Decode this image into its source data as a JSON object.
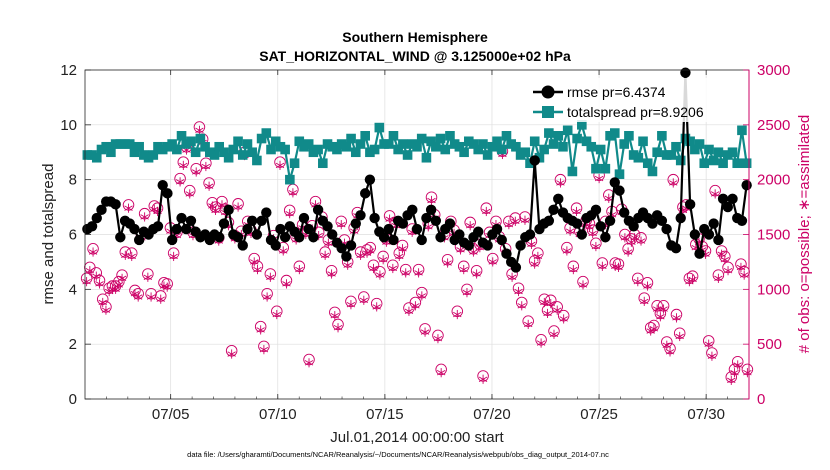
{
  "chart_data": {
    "type": "line",
    "title_line1": "Southern Hemisphere",
    "title_line2": "SAT_HORIZONTAL_WIND @ 3.125000e+02 hPa",
    "xlabel": "Jul.01,2014 00:00:00 start",
    "ylabel_left": "rmse and totalspread",
    "ylabel_right": "# of obs: o=possible; ∗=assimilated",
    "xlim": [
      1,
      32
    ],
    "ylim_left": [
      0,
      12
    ],
    "ylim_right": [
      0,
      3000
    ],
    "x_ticks": [
      5,
      10,
      15,
      20,
      25,
      30
    ],
    "x_tick_labels": [
      "07/05",
      "07/10",
      "07/15",
      "07/20",
      "07/25",
      "07/30"
    ],
    "y_ticks_left": [
      "0",
      "2",
      "4",
      "6",
      "8",
      "10",
      "12"
    ],
    "y_ticks_right": [
      "0",
      "500",
      "1000",
      "1500",
      "2000",
      "2500",
      "3000"
    ],
    "footer": "data file: /Users/gharamti/Documents/NCAR/Reanalysis/~/Documents/NCAR/Reanalysis/webpub/obs_diag_output_2014-07.nc",
    "legend": [
      {
        "name": "rmse pr=6.4374"
      },
      {
        "name": "totalspread pr=8.9206"
      }
    ],
    "colors": {
      "rmse": "#000000",
      "spread": "#108a8a",
      "obs": "#cc0066",
      "axis": "#262626"
    },
    "series": [
      {
        "name": "rmse",
        "axis": "left",
        "values": [
          6.2,
          6.3,
          6.6,
          6.9,
          7.2,
          7.2,
          7.1,
          5.9,
          6.5,
          6.4,
          6.2,
          5.8,
          6.1,
          6.0,
          6.2,
          6.3,
          7.8,
          7.5,
          5.8,
          6.2,
          6.6,
          6.2,
          6.5,
          6.1,
          5.9,
          6.0,
          5.8,
          6.0,
          5.9,
          6.4,
          6.9,
          6.0,
          5.9,
          5.6,
          6.2,
          6.5,
          6.0,
          6.5,
          6.8,
          5.8,
          5.6,
          6.2,
          5.9,
          6.3,
          6.1,
          5.9,
          6.6,
          6.2,
          5.9,
          6.9,
          6.5,
          6.3,
          6.0,
          5.7,
          5.5,
          5.2,
          5.6,
          6.4,
          6.7,
          7.5,
          8.0,
          6.6,
          6.1,
          5.9,
          6.2,
          5.8,
          6.5,
          6.4,
          6.7,
          6.9,
          6.2,
          5.8,
          6.6,
          6.9,
          6.5,
          5.9,
          6.2,
          6.4,
          5.8,
          6.0,
          5.7,
          5.6,
          5.9,
          6.1,
          5.7,
          5.6,
          6.0,
          6.2,
          5.8,
          5.3,
          5.0,
          4.8,
          5.6,
          5.9,
          6.0,
          8.7,
          6.2,
          6.4,
          6.5,
          6.9,
          7.3,
          6.8,
          6.6,
          6.5,
          6.4,
          6.0,
          6.6,
          6.7,
          6.9,
          6.3,
          5.9,
          6.5,
          7.9,
          7.6,
          6.8,
          6.5,
          6.3,
          6.6,
          6.8,
          6.6,
          6.4,
          6.7,
          6.5,
          6.2,
          5.6,
          5.5,
          6.6,
          11.9,
          7.1,
          6.0,
          5.3,
          6.2,
          6.0,
          6.4,
          5.8,
          7.3,
          7.0,
          7.3,
          6.6,
          6.5,
          7.8
        ]
      },
      {
        "name": "totalspread",
        "axis": "left",
        "values": [
          8.9,
          8.9,
          8.8,
          9.1,
          9.2,
          9.0,
          9.3,
          9.3,
          9.3,
          9.3,
          9.0,
          9.2,
          8.9,
          8.8,
          8.9,
          9.2,
          9.1,
          9.2,
          9.3,
          9.1,
          9.6,
          9.3,
          9.4,
          9.0,
          9.5,
          9.2,
          9.0,
          8.9,
          9.2,
          9.0,
          8.8,
          9.1,
          9.4,
          8.9,
          9.3,
          9.0,
          8.7,
          9.5,
          9.7,
          9.1,
          9.4,
          9.2,
          9.1,
          8.0,
          8.6,
          9.4,
          9.2,
          9.3,
          9.0,
          9.1,
          8.6,
          9.3,
          9.2,
          9.1,
          9.3,
          9.2,
          9.5,
          9.0,
          9.3,
          9.6,
          9.0,
          9.1,
          9.9,
          9.3,
          9.3,
          9.6,
          9.1,
          9.3,
          8.9,
          9.3,
          9.2,
          9.5,
          8.8,
          9.4,
          9.2,
          9.5,
          9.1,
          9.6,
          9.3,
          9.2,
          9.0,
          9.4,
          9.3,
          9.1,
          9.3,
          8.9,
          9.2,
          9.4,
          9.1,
          9.6,
          9.3,
          9.2,
          8.9,
          9.0,
          8.6,
          9.4,
          8.8,
          9.1,
          9.7,
          9.3,
          9.6,
          9.2,
          9.8,
          8.3,
          9.5,
          10.0,
          9.4,
          9.2,
          8.4,
          9.1,
          8.4,
          9.6,
          9.7,
          8.2,
          9.3,
          9.6,
          8.9,
          8.8,
          9.4,
          8.6,
          8.3,
          9.0,
          9.6,
          8.9,
          8.9,
          9.2,
          8.7,
          9.5,
          9.4,
          9.1,
          9.3,
          8.6,
          9.1,
          8.7,
          9.0,
          8.6,
          8.9,
          9.0,
          8.6,
          9.8,
          8.6
        ]
      },
      {
        "name": "obs_possible",
        "axis": "right",
        "values": [
          1100,
          1200,
          1370,
          1150,
          1080,
          910,
          840,
          1010,
          1030,
          1030,
          1070,
          1130,
          1340,
          1770,
          1330,
          990,
          960,
          1500,
          1690,
          1140,
          960,
          1760,
          1740,
          940,
          1060,
          1050,
          1560,
          1330,
          1520,
          2010,
          2160,
          2300,
          1900,
          1520,
          2100,
          2480,
          2370,
          2150,
          1970,
          1790,
          1750,
          1470,
          1800,
          1730,
          1610,
          440,
          1490,
          1780,
          1530,
          2250,
          1620,
          1540,
          1280,
          1210,
          660,
          480,
          960,
          1140,
          1490,
          800,
          2160,
          1380,
          1080,
          1720,
          1910,
          1480,
          1210,
          1590,
          1530,
          360,
          1580,
          1800,
          1520,
          1660,
          1340,
          1450,
          1170,
          790,
          680,
          1620,
          1450,
          1250,
          890,
          1560,
          1700,
          1340,
          930,
          1360,
          1380,
          1220,
          870,
          1160,
          1300,
          1460,
          1670,
          1220,
          1610,
          1330,
          1400,
          1180,
          830,
          1550,
          880,
          1180,
          970,
          640,
          1600,
          1840,
          1680,
          580,
          270,
          1500,
          1270,
          1620,
          1540,
          800,
          1390,
          1210,
          1000,
          1610,
          1370,
          1170,
          1410,
          210,
          1740,
          1520,
          1280,
          1620,
          1480,
          2260,
          1370,
          1620,
          1140,
          1650,
          1010,
          880,
          1660,
          710,
          1440,
          1260,
          1330,
          540,
          910,
          810,
          900,
          620,
          840,
          2000,
          760,
          1380,
          1560,
          1210,
          1740,
          1530,
          1070,
          1630,
          1600,
          1540,
          1420,
          2040,
          1240,
          1620,
          1860,
          1710,
          1240,
          1230,
          1730,
          1500,
          1370,
          1460,
          1500,
          1100,
          1470,
          920,
          1060,
          650,
          670,
          850,
          780,
          850,
          520,
          460,
          2000,
          770,
          600,
          1750,
          1770,
          1100,
          1120,
          1410,
          1460,
          1390,
          1350,
          530,
          420,
          1900,
          1130,
          1350,
          1300,
          1200,
          200,
          270,
          340,
          1230,
          1160,
          270
        ]
      },
      {
        "name": "obs_assimilated",
        "axis": "right",
        "values": [
          1070,
          1170,
          1340,
          1120,
          1050,
          880,
          810,
          980,
          1000,
          1000,
          1040,
          1100,
          1310,
          1740,
          1300,
          960,
          930,
          1470,
          1660,
          1110,
          930,
          1730,
          1710,
          910,
          1030,
          1020,
          1530,
          1300,
          1490,
          1980,
          2130,
          2270,
          1870,
          1490,
          2070,
          2450,
          2340,
          2120,
          1940,
          1760,
          1720,
          1440,
          1770,
          1700,
          1580,
          410,
          1460,
          1750,
          1500,
          2220,
          1590,
          1510,
          1250,
          1180,
          630,
          450,
          930,
          1110,
          1460,
          770,
          2130,
          1350,
          1050,
          1690,
          1880,
          1450,
          1180,
          1560,
          1500,
          330,
          1550,
          1770,
          1490,
          1630,
          1310,
          1420,
          1140,
          760,
          650,
          1590,
          1420,
          1220,
          860,
          1530,
          1670,
          1310,
          900,
          1330,
          1350,
          1190,
          840,
          1130,
          1270,
          1430,
          1640,
          1190,
          1580,
          1300,
          1370,
          1150,
          800,
          1520,
          850,
          1150,
          940,
          610,
          1570,
          1810,
          1650,
          550,
          240,
          1470,
          1240,
          1590,
          1510,
          770,
          1360,
          1180,
          970,
          1580,
          1340,
          1140,
          1380,
          180,
          1710,
          1490,
          1250,
          1590,
          1450,
          2230,
          1340,
          1590,
          1110,
          1620,
          980,
          850,
          1630,
          680,
          1410,
          1230,
          1300,
          510,
          880,
          780,
          870,
          590,
          810,
          1970,
          730,
          1350,
          1530,
          1180,
          1710,
          1500,
          1040,
          1600,
          1570,
          1510,
          1390,
          2010,
          1210,
          1590,
          1830,
          1680,
          1210,
          1200,
          1700,
          1470,
          1340,
          1430,
          1470,
          1070,
          1440,
          890,
          1030,
          620,
          640,
          820,
          750,
          820,
          490,
          430,
          1970,
          740,
          570,
          1720,
          1740,
          1070,
          1090,
          1380,
          1430,
          1360,
          1320,
          500,
          390,
          1870,
          1100,
          1320,
          1270,
          1170,
          170,
          240,
          310,
          1200,
          1130,
          240
        ]
      }
    ]
  }
}
